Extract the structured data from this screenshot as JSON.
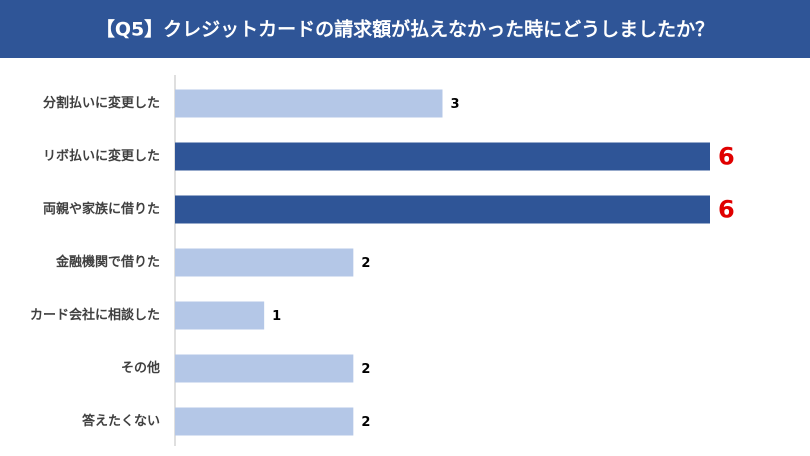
{
  "chart_data": {
    "type": "bar",
    "orientation": "horizontal",
    "title": "【Q5】クレジットカードの請求額が払えなかった時にどうしましたか？",
    "categories": [
      "分割払いに変更した",
      "リボ払いに変更した",
      "両親や家族に借りた",
      "金融機関で借りた",
      "カード会社に相談した",
      "その他",
      "答えたくない"
    ],
    "values": [
      3,
      6,
      6,
      2,
      1,
      2,
      2
    ],
    "colors": [
      "#b4c7e7",
      "#2f5597",
      "#2f5597",
      "#b4c7e7",
      "#b4c7e7",
      "#b4c7e7",
      "#b4c7e7"
    ],
    "value_label_colors": [
      "#000000",
      "#e00000",
      "#e00000",
      "#000000",
      "#000000",
      "#000000",
      "#000000"
    ]
  }
}
